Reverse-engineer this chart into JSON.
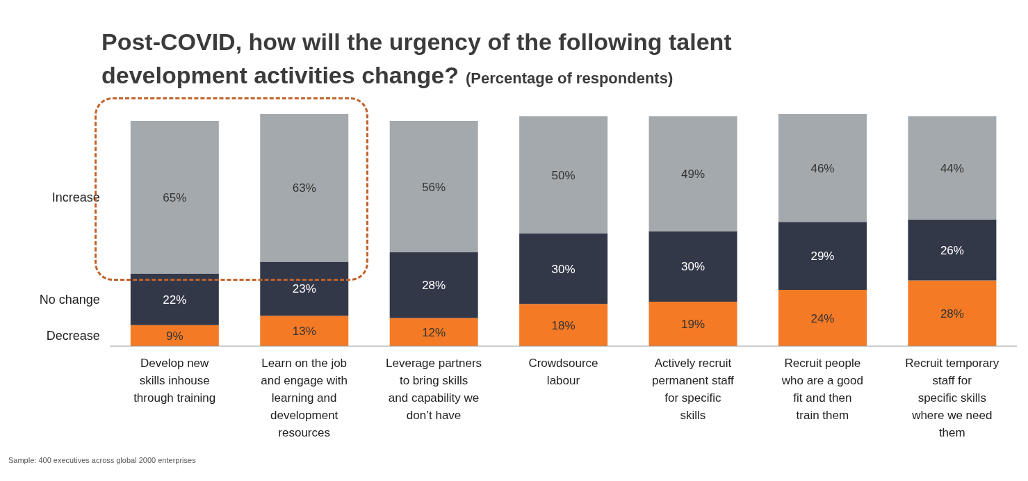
{
  "chart_data": {
    "type": "bar",
    "stacked": true,
    "title": "Post-COVID, how will the urgency of the following talent development activities change?",
    "subtitle": "(Percentage of respondents)",
    "categories": [
      "Develop new skills inhouse through training",
      "Learn on the job and engage with learning and development resources",
      "Leverage partners to bring skills and capability we don’t have",
      "Crowdsource labour",
      "Actively recruit permanent staff for specific skills",
      "Recruit people who are a good fit and then train them",
      "Recruit temporary staff for specific skills where we need them"
    ],
    "series": [
      {
        "name": "Decrease",
        "color": "#f47a25",
        "values": [
          9,
          13,
          12,
          18,
          19,
          24,
          28
        ],
        "value_labels": [
          "9%",
          "13%",
          "12%",
          "18%",
          "19%",
          "24%",
          "28%"
        ]
      },
      {
        "name": "No change",
        "color": "#333849",
        "values": [
          22,
          23,
          28,
          30,
          30,
          29,
          26
        ],
        "value_labels": [
          "22%",
          "23%",
          "28%",
          "30%",
          "30%",
          "29%",
          "26%"
        ]
      },
      {
        "name": "Increase",
        "color": "#a3a9ad",
        "values": [
          65,
          63,
          56,
          50,
          49,
          46,
          44
        ],
        "value_labels": [
          "65%",
          "63%",
          "56%",
          "50%",
          "49%",
          "46%",
          "44%"
        ]
      }
    ],
    "legend": "left",
    "annotations": [
      "Sample: 400 executives across global 2000 enterprises"
    ]
  }
}
